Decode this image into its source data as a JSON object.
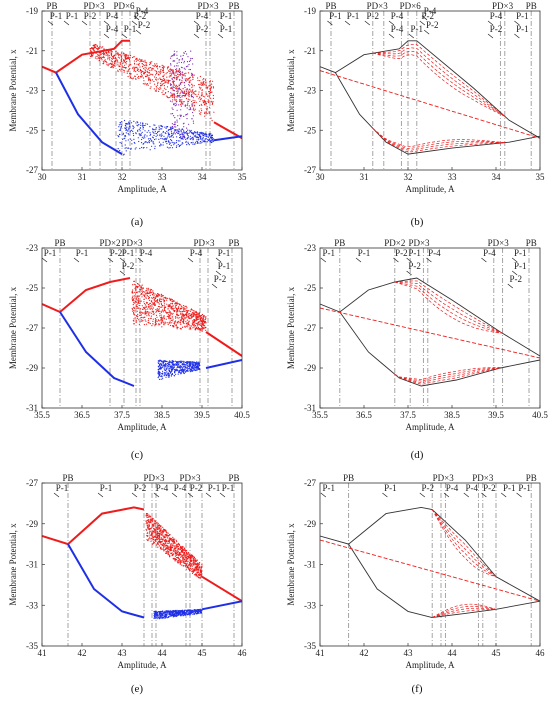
{
  "figure": {
    "axis_ylabel": "Membrane Potential, x",
    "axis_xlabel": "Amplitude, A"
  },
  "chart_data": [
    {
      "id": "a",
      "caption": "(a)",
      "type": "scatter",
      "mode": "bifurcation",
      "xlim": [
        30,
        35
      ],
      "ylim": [
        -27,
        -19
      ],
      "xticks": [
        30,
        31,
        32,
        33,
        34,
        35
      ],
      "yticks": [
        -19,
        -21,
        -23,
        -25,
        -27
      ],
      "xlabel": "Amplitude, A",
      "ylabel": "Membrane Potential, x",
      "grid": false,
      "vlines": [
        30.25,
        31.2,
        31.45,
        31.85,
        32.0,
        32.2,
        34.1,
        34.2,
        34.8
      ],
      "annotations": [
        {
          "text": "PB",
          "x": 30.25,
          "row": 0
        },
        {
          "text": "PD×3",
          "x": 31.3,
          "row": 0
        },
        {
          "text": "PD×6",
          "x": 32.05,
          "row": 0
        },
        {
          "text": "PD×3",
          "x": 34.15,
          "row": 0
        },
        {
          "text": "PB",
          "x": 34.8,
          "row": 0
        },
        {
          "text": "P-1",
          "x": 30.35,
          "row": 1
        },
        {
          "text": "P-1",
          "x": 30.75,
          "row": 1
        },
        {
          "text": "P-2",
          "x": 31.2,
          "row": 1
        },
        {
          "text": "P-4",
          "x": 31.75,
          "row": 1
        },
        {
          "text": "P-2",
          "x": 32.45,
          "row": 1
        },
        {
          "text": "P-4",
          "x": 34.0,
          "row": 1
        },
        {
          "text": "P-1",
          "x": 34.6,
          "row": 1
        },
        {
          "text": "P-4",
          "x": 32.5,
          "row": 0.6
        },
        {
          "text": "P-4",
          "x": 31.75,
          "row": 2
        },
        {
          "text": "P-1",
          "x": 32.2,
          "row": 2
        },
        {
          "text": "P-2",
          "x": 32.55,
          "row": 1.7
        },
        {
          "text": "P-2",
          "x": 34.0,
          "row": 2
        },
        {
          "text": "P-1",
          "x": 34.6,
          "row": 2
        }
      ],
      "period1_upper": {
        "x": [
          30,
          30.35,
          31.0,
          31.8,
          32.0,
          32.2
        ],
        "y": [
          -21.8,
          -22.1,
          -21.2,
          -20.9,
          -20.5,
          -20.5
        ]
      },
      "period1_upper_right": {
        "x": [
          34.3,
          35.0
        ],
        "y": [
          -24.6,
          -25.4
        ]
      },
      "period1_lower": {
        "x": [
          30.35,
          30.9,
          31.5,
          32.0
        ],
        "y": [
          -22.1,
          -24.2,
          -25.6,
          -26.2
        ]
      },
      "period1_lower_right": {
        "x": [
          34.3,
          35.0
        ],
        "y": [
          -25.5,
          -25.3
        ]
      },
      "chaos_upper": {
        "x": [
          31.2,
          34.3
        ],
        "y_top": [
          -20.6,
          -22.5
        ],
        "y_bottom": [
          -21.3,
          -24.6
        ]
      },
      "chaos_lower": {
        "x": [
          31.9,
          34.3
        ],
        "y_top": [
          -24.4,
          -25.2
        ],
        "y_bottom": [
          -26.3,
          -25.6
        ]
      },
      "colors": {
        "upper": "#ee1c1c",
        "lower": "#1f2fe6",
        "overlap": "#7a2bb5"
      }
    },
    {
      "id": "b",
      "caption": "(b)",
      "type": "line",
      "mode": "continuation",
      "xlim": [
        30,
        35
      ],
      "ylim": [
        -27,
        -19
      ],
      "xticks": [
        30,
        31,
        32,
        33,
        34,
        35
      ],
      "yticks": [
        -19,
        -21,
        -23,
        -25,
        -27
      ],
      "xlabel": "Amplitude, A",
      "ylabel": "Membrane Potential, x",
      "grid": false,
      "vlines": [
        30.25,
        31.2,
        31.45,
        31.85,
        32.0,
        32.2,
        34.1,
        34.2,
        34.8
      ],
      "annotations": [
        {
          "text": "PB",
          "x": 30.25,
          "row": 0
        },
        {
          "text": "PD×3",
          "x": 31.3,
          "row": 0
        },
        {
          "text": "PD×6",
          "x": 32.05,
          "row": 0
        },
        {
          "text": "PD×3",
          "x": 34.15,
          "row": 0
        },
        {
          "text": "PB",
          "x": 34.8,
          "row": 0
        },
        {
          "text": "P-1",
          "x": 30.35,
          "row": 1
        },
        {
          "text": "P-1",
          "x": 30.75,
          "row": 1
        },
        {
          "text": "P-2",
          "x": 31.2,
          "row": 1
        },
        {
          "text": "P-4",
          "x": 31.75,
          "row": 1
        },
        {
          "text": "P-2",
          "x": 32.45,
          "row": 1
        },
        {
          "text": "P-4",
          "x": 34.0,
          "row": 1
        },
        {
          "text": "P-1",
          "x": 34.6,
          "row": 1
        },
        {
          "text": "P-4",
          "x": 32.5,
          "row": 0.6
        },
        {
          "text": "P-4",
          "x": 31.75,
          "row": 2
        },
        {
          "text": "P-1",
          "x": 32.2,
          "row": 2
        },
        {
          "text": "P-2",
          "x": 32.55,
          "row": 1.7
        },
        {
          "text": "P-2",
          "x": 34.0,
          "row": 2
        },
        {
          "text": "P-1",
          "x": 34.6,
          "row": 2
        }
      ],
      "stable_upper": {
        "x": [
          30,
          30.35,
          31.0,
          31.8,
          32.0,
          32.2,
          33.5,
          34.3,
          35.0
        ],
        "y": [
          -21.8,
          -22.1,
          -21.2,
          -20.9,
          -20.5,
          -20.5,
          -22.9,
          -24.5,
          -25.4
        ]
      },
      "stable_lower": {
        "x": [
          30.35,
          30.9,
          31.5,
          32.0,
          33.0,
          34.3,
          35.0
        ],
        "y": [
          -22.1,
          -24.2,
          -25.6,
          -26.2,
          -25.9,
          -25.6,
          -25.3
        ]
      },
      "unstable_p1": {
        "x": [
          30,
          35
        ],
        "y": [
          -22.0,
          -25.4
        ]
      },
      "colors": {
        "stable": "#333333",
        "unstable": "#ee1c1c"
      }
    },
    {
      "id": "c",
      "caption": "(c)",
      "type": "scatter",
      "mode": "bifurcation",
      "xlim": [
        35.5,
        40.5
      ],
      "ylim": [
        -31,
        -23
      ],
      "xticks": [
        35.5,
        36.5,
        37.5,
        38.5,
        39.5,
        40.5
      ],
      "yticks": [
        -23,
        -25,
        -27,
        -29,
        -31
      ],
      "xlabel": "Amplitude, A",
      "ylabel": "Membrane Potential, x",
      "grid": false,
      "vlines": [
        35.95,
        37.2,
        37.55,
        37.85,
        37.95,
        39.45,
        39.65,
        40.25
      ],
      "annotations": [
        {
          "text": "PB",
          "x": 35.95,
          "row": 0
        },
        {
          "text": "PD×2",
          "x": 37.2,
          "row": 0
        },
        {
          "text": "PD×3",
          "x": 37.75,
          "row": 0
        },
        {
          "text": "PD×3",
          "x": 39.55,
          "row": 0
        },
        {
          "text": "PB",
          "x": 40.3,
          "row": 0
        },
        {
          "text": "P-1",
          "x": 35.7,
          "row": 1
        },
        {
          "text": "P-1",
          "x": 36.5,
          "row": 1
        },
        {
          "text": "P-2",
          "x": 37.35,
          "row": 1
        },
        {
          "text": "P-1",
          "x": 37.65,
          "row": 1
        },
        {
          "text": "P-4",
          "x": 38.1,
          "row": 1
        },
        {
          "text": "P-4",
          "x": 39.35,
          "row": 1
        },
        {
          "text": "P-1",
          "x": 40.05,
          "row": 1
        },
        {
          "text": "P-2",
          "x": 37.65,
          "row": 2
        },
        {
          "text": "P-1",
          "x": 40.05,
          "row": 2
        },
        {
          "text": "P-2",
          "x": 39.95,
          "row": 3
        }
      ],
      "period1_upper": {
        "x": [
          35.5,
          35.95,
          36.6,
          37.2,
          37.7
        ],
        "y": [
          -25.8,
          -26.2,
          -25.1,
          -24.7,
          -24.5
        ]
      },
      "period1_upper_right": {
        "x": [
          39.6,
          40.5
        ],
        "y": [
          -27.2,
          -28.4
        ]
      },
      "period1_lower": {
        "x": [
          35.95,
          36.6,
          37.3,
          37.8
        ],
        "y": [
          -26.2,
          -28.2,
          -29.5,
          -29.9
        ]
      },
      "period1_lower_right": {
        "x": [
          39.6,
          40.5
        ],
        "y": [
          -29.0,
          -28.6
        ]
      },
      "chaos_upper": {
        "x": [
          37.75,
          39.6
        ],
        "y_top": [
          -24.6,
          -26.4
        ],
        "y_bottom": [
          -26.8,
          -27.2
        ]
      },
      "chaos_lower": {
        "x": [
          38.4,
          39.45
        ],
        "y_top": [
          -28.6,
          -28.7
        ],
        "y_bottom": [
          -29.6,
          -29.1
        ]
      },
      "colors": {
        "upper": "#ee1c1c",
        "lower": "#1f2fe6"
      }
    },
    {
      "id": "d",
      "caption": "(d)",
      "type": "line",
      "mode": "continuation",
      "xlim": [
        35.5,
        40.5
      ],
      "ylim": [
        -31,
        -23
      ],
      "xticks": [
        35.5,
        36.5,
        37.5,
        38.5,
        39.5,
        40.5
      ],
      "yticks": [
        -23,
        -25,
        -27,
        -29,
        -31
      ],
      "xlabel": "Amplitude, A",
      "ylabel": "Membrane Potential, x",
      "grid": false,
      "vlines": [
        35.95,
        37.2,
        37.55,
        37.85,
        37.95,
        39.45,
        39.65,
        40.25
      ],
      "annotations": [
        {
          "text": "PB",
          "x": 35.95,
          "row": 0
        },
        {
          "text": "PD×2",
          "x": 37.2,
          "row": 0
        },
        {
          "text": "PD×3",
          "x": 37.75,
          "row": 0
        },
        {
          "text": "PD×3",
          "x": 39.55,
          "row": 0
        },
        {
          "text": "PB",
          "x": 40.3,
          "row": 0
        },
        {
          "text": "P-1",
          "x": 35.7,
          "row": 1
        },
        {
          "text": "P-1",
          "x": 36.5,
          "row": 1
        },
        {
          "text": "P-2",
          "x": 37.35,
          "row": 1
        },
        {
          "text": "P-1",
          "x": 37.65,
          "row": 1
        },
        {
          "text": "P-4",
          "x": 38.1,
          "row": 1
        },
        {
          "text": "P-4",
          "x": 39.35,
          "row": 1
        },
        {
          "text": "P-1",
          "x": 40.05,
          "row": 1
        },
        {
          "text": "P-2",
          "x": 37.65,
          "row": 2
        },
        {
          "text": "P-1",
          "x": 40.05,
          "row": 2
        },
        {
          "text": "P-2",
          "x": 39.95,
          "row": 3
        }
      ],
      "stable_upper": {
        "x": [
          35.5,
          35.95,
          36.6,
          37.2,
          37.7,
          38.5,
          39.6,
          40.5
        ],
        "y": [
          -25.8,
          -26.2,
          -25.1,
          -24.7,
          -24.5,
          -25.6,
          -27.2,
          -28.4
        ]
      },
      "stable_lower": {
        "x": [
          35.95,
          36.6,
          37.3,
          37.8,
          38.6,
          39.6,
          40.5
        ],
        "y": [
          -26.2,
          -28.2,
          -29.5,
          -29.9,
          -29.6,
          -29.0,
          -28.6
        ]
      },
      "unstable_p1": {
        "x": [
          35.5,
          40.5
        ],
        "y": [
          -26.0,
          -28.5
        ]
      },
      "colors": {
        "stable": "#333333",
        "unstable": "#ee1c1c"
      }
    },
    {
      "id": "e",
      "caption": "(e)",
      "type": "scatter",
      "mode": "bifurcation",
      "xlim": [
        41,
        46
      ],
      "ylim": [
        -35,
        -27
      ],
      "xticks": [
        41,
        42,
        43,
        44,
        45,
        46
      ],
      "yticks": [
        -27,
        -29,
        -31,
        -33,
        -35
      ],
      "xlabel": "Amplitude, A",
      "ylabel": "Membrane Potential, x",
      "grid": false,
      "vlines": [
        41.65,
        43.55,
        43.75,
        43.85,
        44.6,
        44.7,
        45.0,
        45.8
      ],
      "annotations": [
        {
          "text": "PB",
          "x": 41.65,
          "row": 0
        },
        {
          "text": "PD×3",
          "x": 43.8,
          "row": 0
        },
        {
          "text": "PD×3",
          "x": 44.7,
          "row": 0
        },
        {
          "text": "PB",
          "x": 45.8,
          "row": 0
        },
        {
          "text": "P-1",
          "x": 41.5,
          "row": 1
        },
        {
          "text": "P-1",
          "x": 42.6,
          "row": 1
        },
        {
          "text": "P-2",
          "x": 43.45,
          "row": 1
        },
        {
          "text": "P-4",
          "x": 44.0,
          "row": 1
        },
        {
          "text": "P-4",
          "x": 44.45,
          "row": 1
        },
        {
          "text": "P-2",
          "x": 44.85,
          "row": 1
        },
        {
          "text": "P-1",
          "x": 45.3,
          "row": 1
        },
        {
          "text": "P-1",
          "x": 45.65,
          "row": 1
        }
      ],
      "period1_upper": {
        "x": [
          41.0,
          41.65,
          42.5,
          43.3,
          43.55
        ],
        "y": [
          -29.6,
          -30.0,
          -28.5,
          -28.2,
          -28.3
        ]
      },
      "period1_upper_right": {
        "x": [
          45.0,
          46.0
        ],
        "y": [
          -31.6,
          -32.8
        ]
      },
      "period1_lower": {
        "x": [
          41.65,
          42.3,
          43.0,
          43.55
        ],
        "y": [
          -30.0,
          -32.2,
          -33.3,
          -33.6
        ]
      },
      "period1_lower_right": {
        "x": [
          45.0,
          46.0
        ],
        "y": [
          -33.2,
          -32.8
        ]
      },
      "chaos_upper": {
        "x": [
          43.6,
          45.0
        ],
        "y_top": [
          -28.4,
          -31.0
        ],
        "y_bottom": [
          -29.8,
          -31.8
        ]
      },
      "chaos_lower": {
        "x": [
          43.8,
          45.0
        ],
        "y_top": [
          -33.3,
          -33.2
        ],
        "y_bottom": [
          -33.7,
          -33.4
        ]
      },
      "colors": {
        "upper": "#ee1c1c",
        "lower": "#1f2fe6"
      }
    },
    {
      "id": "f",
      "caption": "(f)",
      "type": "line",
      "mode": "continuation",
      "xlim": [
        41,
        46
      ],
      "ylim": [
        -35,
        -27
      ],
      "xticks": [
        41,
        42,
        43,
        44,
        45,
        46
      ],
      "yticks": [
        -27,
        -29,
        -31,
        -33,
        -35
      ],
      "xlabel": "Amplitude, A",
      "ylabel": "Membrane Potential, x",
      "grid": false,
      "vlines": [
        41.65,
        43.55,
        43.75,
        43.85,
        44.6,
        44.7,
        45.0,
        45.8
      ],
      "annotations": [
        {
          "text": "PB",
          "x": 41.65,
          "row": 0
        },
        {
          "text": "PD×3",
          "x": 43.8,
          "row": 0
        },
        {
          "text": "PD×3",
          "x": 44.7,
          "row": 0
        },
        {
          "text": "PB",
          "x": 45.8,
          "row": 0
        },
        {
          "text": "P-1",
          "x": 41.2,
          "row": 1
        },
        {
          "text": "P-1",
          "x": 42.6,
          "row": 1
        },
        {
          "text": "P-2",
          "x": 43.45,
          "row": 1
        },
        {
          "text": "P-4",
          "x": 44.0,
          "row": 1
        },
        {
          "text": "P-4",
          "x": 44.45,
          "row": 1
        },
        {
          "text": "P-2",
          "x": 44.85,
          "row": 1
        },
        {
          "text": "P-1",
          "x": 45.3,
          "row": 1
        },
        {
          "text": "P-1",
          "x": 45.65,
          "row": 1
        }
      ],
      "stable_upper": {
        "x": [
          41.0,
          41.65,
          42.5,
          43.3,
          43.55,
          44.3,
          45.0,
          46.0
        ],
        "y": [
          -29.6,
          -30.0,
          -28.5,
          -28.2,
          -28.3,
          -29.8,
          -31.6,
          -32.8
        ]
      },
      "stable_lower": {
        "x": [
          41.65,
          42.3,
          43.0,
          43.55,
          44.3,
          45.0,
          46.0
        ],
        "y": [
          -30.0,
          -32.2,
          -33.3,
          -33.6,
          -33.4,
          -33.2,
          -32.8
        ]
      },
      "unstable_p1": {
        "x": [
          41.0,
          46.0
        ],
        "y": [
          -29.8,
          -32.8
        ]
      },
      "colors": {
        "stable": "#333333",
        "unstable": "#ee1c1c"
      }
    }
  ]
}
